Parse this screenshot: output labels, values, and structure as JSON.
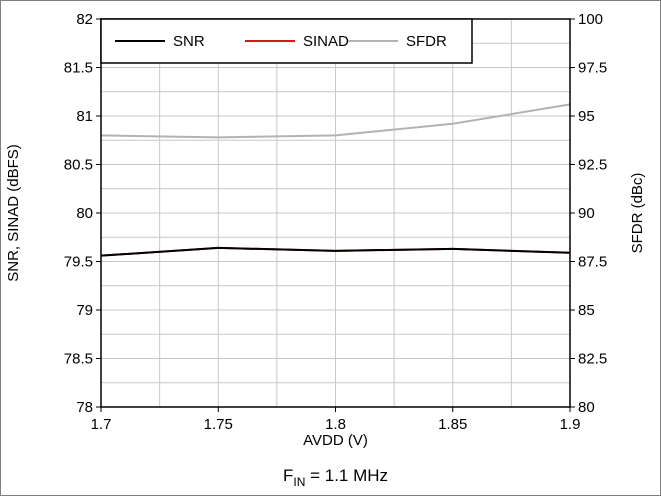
{
  "chart_data": {
    "type": "line",
    "x": [
      1.7,
      1.75,
      1.8,
      1.85,
      1.9
    ],
    "x_ticks": [
      "1.7",
      "1.75",
      "1.8",
      "1.85",
      "1.9"
    ],
    "xlabel": "AVDD (V)",
    "xlim": [
      1.7,
      1.9
    ],
    "ylabel_left": "SNR, SINAD (dBFS)",
    "ylim_left": [
      78,
      82
    ],
    "y_ticks_left": [
      "78",
      "78.5",
      "79",
      "79.5",
      "80",
      "80.5",
      "81",
      "81.5",
      "82"
    ],
    "ylabel_right": "SFDR (dBc)",
    "ylim_right": [
      80,
      100
    ],
    "y_ticks_right": [
      "80",
      "82.5",
      "85",
      "87.5",
      "90",
      "92.5",
      "95",
      "97.5",
      "100"
    ],
    "grid": true,
    "legend_position": "top-left",
    "series": [
      {
        "name": "SNR",
        "axis": "left",
        "color": "#000000",
        "values": [
          79.56,
          79.64,
          79.61,
          79.63,
          79.59
        ]
      },
      {
        "name": "SINAD",
        "axis": "left",
        "color": "#d11a1a",
        "values": [
          79.56,
          79.64,
          79.61,
          79.63,
          79.59
        ]
      },
      {
        "name": "SFDR",
        "axis": "right",
        "color": "#b3b3b3",
        "values": [
          94.0,
          93.9,
          94.0,
          94.6,
          95.6
        ]
      }
    ],
    "caption": {
      "prefix": "F",
      "subscript": "IN",
      "suffix": " = 1.1 MHz"
    }
  }
}
